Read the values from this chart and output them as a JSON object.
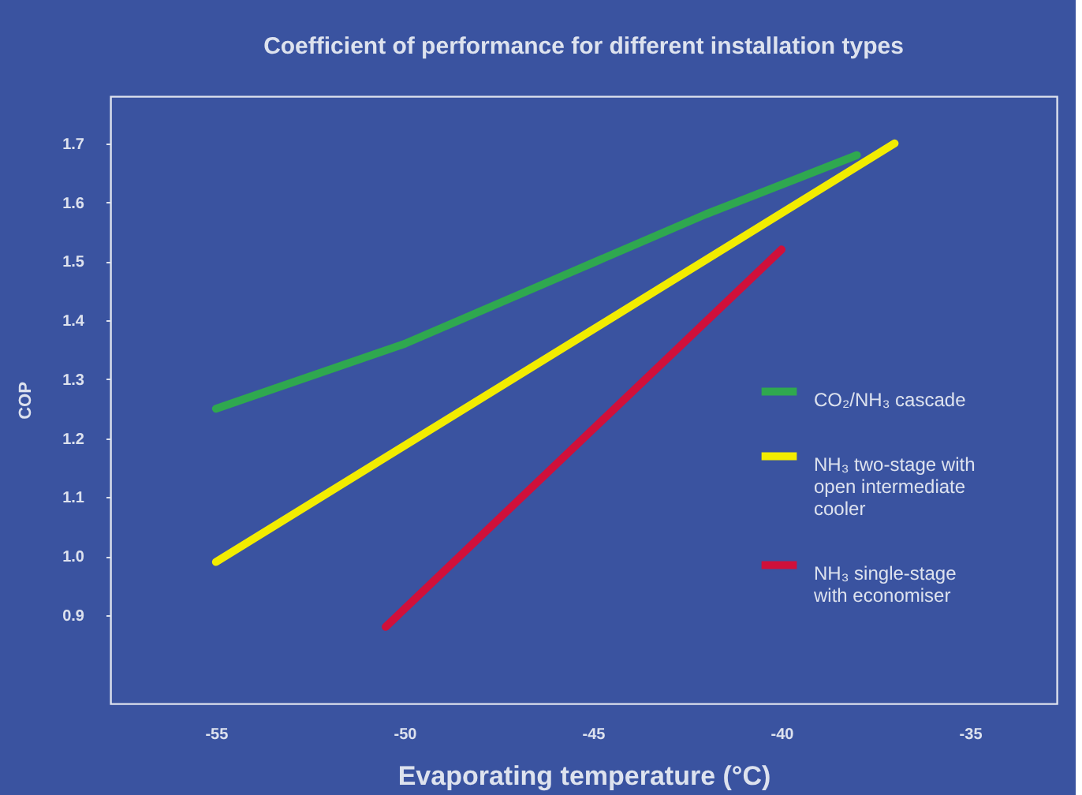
{
  "chart_data": {
    "type": "line",
    "title": "Coefficient of performance for different installation types",
    "xlabel": "Evaporating temperature (°C)",
    "ylabel": "COP",
    "series": [
      {
        "name": "CO₂/NH₃ cascade",
        "color": "#2fa84f",
        "x": [
          -55,
          -50,
          -46,
          -42,
          -38
        ],
        "values": [
          1.25,
          1.36,
          1.47,
          1.58,
          1.68
        ]
      },
      {
        "name": "NH₃ two-stage with open intermediate cooler",
        "color": "#f2ec00",
        "x": [
          -55,
          -37
        ],
        "values": [
          0.99,
          1.7
        ]
      },
      {
        "name": "NH₃ single-stage with economiser",
        "color": "#d0103a",
        "x": [
          -50.5,
          -40
        ],
        "values": [
          0.88,
          1.52
        ]
      }
    ],
    "xlim": [
      -57.8,
      -32.7
    ],
    "xticks": [
      -55,
      -50,
      -45,
      -40,
      -35
    ],
    "ylim": [
      0.75,
      1.78
    ],
    "yticks": [
      0.9,
      {
        "value": 1.0,
        "label": "1.0"
      },
      1.1,
      1.2,
      1.3,
      1.4,
      1.5,
      1.6,
      1.7
    ],
    "grid": false,
    "legend": "right",
    "marker": "none",
    "line_style": "solid"
  }
}
